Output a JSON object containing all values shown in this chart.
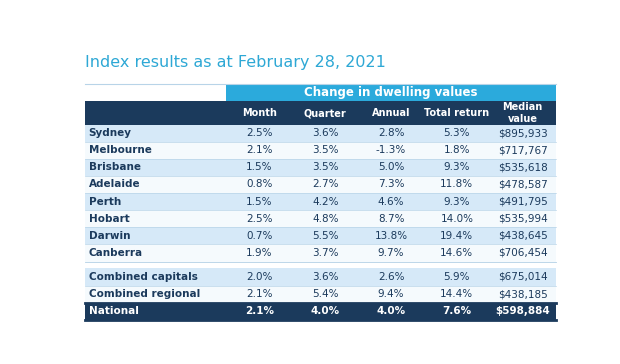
{
  "title": "Index results as at February 28, 2021",
  "header_group": "Change in dwelling values",
  "col_headers": [
    "Month",
    "Quarter",
    "Annual",
    "Total return",
    "Median\nvalue"
  ],
  "row_labels": [
    "Sydney",
    "Melbourne",
    "Brisbane",
    "Adelaide",
    "Perth",
    "Hobart",
    "Darwin",
    "Canberra",
    "Combined capitals",
    "Combined regional",
    "National"
  ],
  "table_data": [
    [
      "2.5%",
      "3.6%",
      "2.8%",
      "5.3%",
      "$895,933"
    ],
    [
      "2.1%",
      "3.5%",
      "-1.3%",
      "1.8%",
      "$717,767"
    ],
    [
      "1.5%",
      "3.5%",
      "5.0%",
      "9.3%",
      "$535,618"
    ],
    [
      "0.8%",
      "2.7%",
      "7.3%",
      "11.8%",
      "$478,587"
    ],
    [
      "1.5%",
      "4.2%",
      "4.6%",
      "9.3%",
      "$491,795"
    ],
    [
      "2.5%",
      "4.8%",
      "8.7%",
      "14.0%",
      "$535,994"
    ],
    [
      "0.7%",
      "5.5%",
      "13.8%",
      "19.4%",
      "$438,645"
    ],
    [
      "1.9%",
      "3.7%",
      "9.7%",
      "14.6%",
      "$706,454"
    ],
    [
      "2.0%",
      "3.6%",
      "2.6%",
      "5.9%",
      "$675,014"
    ],
    [
      "2.1%",
      "5.4%",
      "9.4%",
      "14.4%",
      "$438,185"
    ],
    [
      "2.1%",
      "4.0%",
      "4.0%",
      "7.6%",
      "$598,884"
    ]
  ],
  "title_color": "#2EA8D5",
  "header_group_bg": "#2BAADC",
  "header_group_fg": "#ffffff",
  "subheader_bg": "#1B3A5C",
  "subheader_fg": "#ffffff",
  "row_bg_blue": "#D6E9F8",
  "row_bg_white": "#f5fafd",
  "national_bg": "#1B3A5C",
  "national_fg": "#ffffff",
  "text_dark": "#1B3A5C",
  "figsize": [
    6.2,
    3.64
  ],
  "dpi": 100
}
